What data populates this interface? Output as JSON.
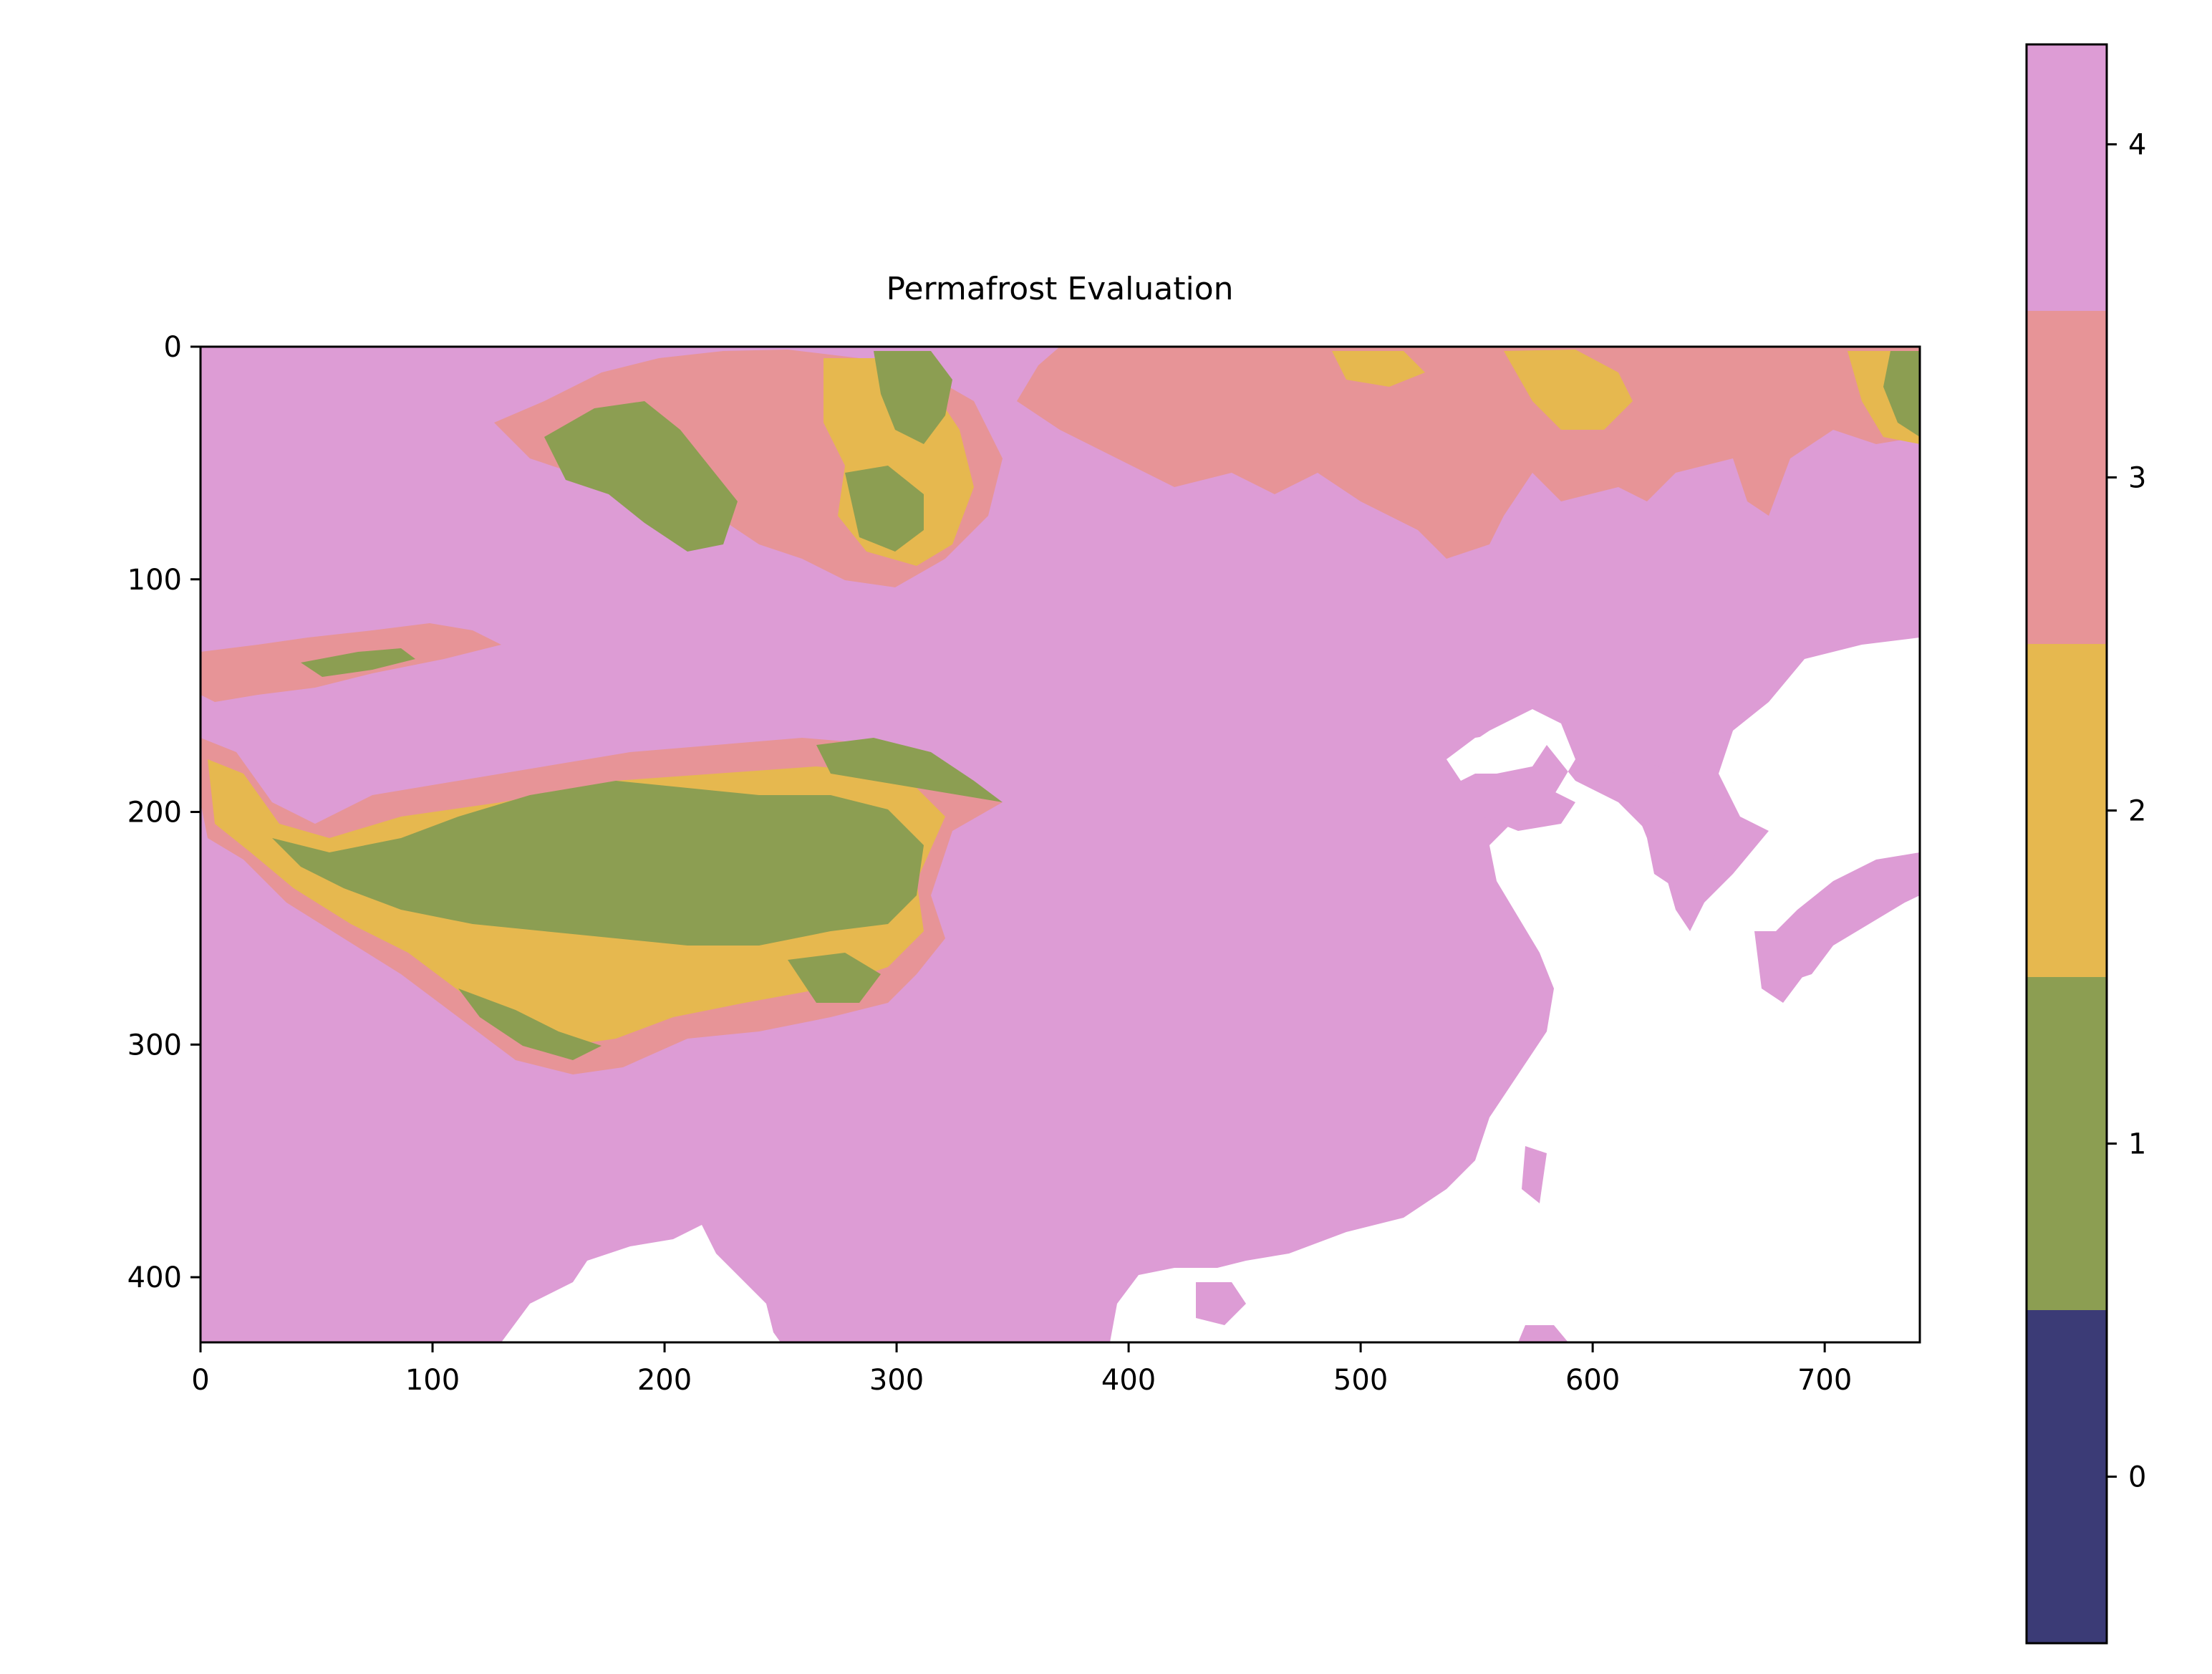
{
  "chart_data": {
    "type": "heatmap",
    "title": "Permafrost Evaluation",
    "grid_shape": {
      "rows": 428,
      "cols": 741
    },
    "x_ticks": [
      0,
      100,
      200,
      300,
      400,
      500,
      600,
      700
    ],
    "y_ticks": [
      0,
      100,
      200,
      300,
      400
    ],
    "xlim": [
      0,
      741
    ],
    "ylim": [
      428,
      0
    ],
    "grid": false,
    "colorbar": {
      "placement": "right",
      "vmin": -0.5,
      "vmax": 4.3,
      "ticks": [
        0,
        1,
        2,
        3,
        4
      ],
      "classes": [
        {
          "value": 0,
          "color": "#3b3b76"
        },
        {
          "value": 1,
          "color": "#8c9e52"
        },
        {
          "value": 2,
          "color": "#e6b84f"
        },
        {
          "value": 3,
          "color": "#e79497"
        },
        {
          "value": 4,
          "color": "#dd9cd5"
        }
      ]
    },
    "nodata_color": "#ffffff"
  }
}
